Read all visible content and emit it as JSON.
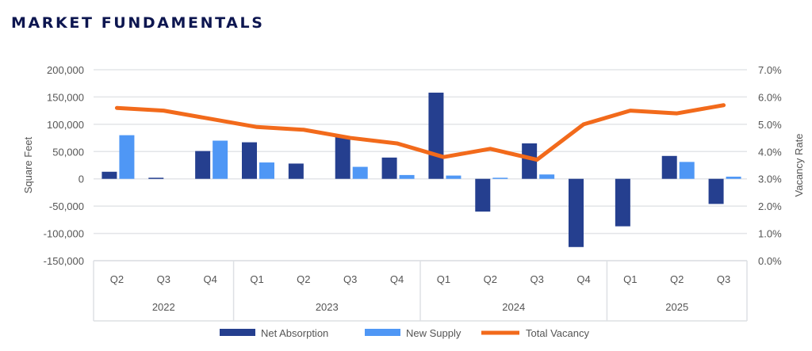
{
  "title": "MARKET FUNDAMENTALS",
  "chart_data": {
    "type": "bar",
    "title": "MARKET FUNDAMENTALS",
    "ylabel": "Square Feet",
    "y2label": "Vacancy Rate",
    "ylim": [
      -150000,
      200000
    ],
    "yticks": [
      200000,
      150000,
      100000,
      50000,
      0,
      -50000,
      -100000,
      -150000
    ],
    "ytick_labels": [
      "200,000",
      "150,000",
      "100,000",
      "50,000",
      "0",
      "-50,000",
      "-100,000",
      "-150,000"
    ],
    "y2lim": [
      0,
      7
    ],
    "y2tick_labels": [
      "7.0%",
      "6.0%",
      "5.0%",
      "4.0%",
      "3.0%",
      "2.0%",
      "1.0%",
      "0.0%"
    ],
    "grid": true,
    "legend_position": "bottom",
    "categories": [
      "Q2",
      "Q3",
      "Q4",
      "Q1",
      "Q2",
      "Q3",
      "Q4",
      "Q1",
      "Q2",
      "Q3",
      "Q4",
      "Q1",
      "Q2",
      "Q3"
    ],
    "year_groups": [
      {
        "label": "2022",
        "count": 3
      },
      {
        "label": "2023",
        "count": 4
      },
      {
        "label": "2024",
        "count": 4
      },
      {
        "label": "2025",
        "count": 3
      }
    ],
    "series": [
      {
        "name": "Net Absorption",
        "type": "bar",
        "axis": "left",
        "color": "#253f8f",
        "values": [
          13000,
          2000,
          51000,
          67000,
          28000,
          78000,
          39000,
          158000,
          -60000,
          65000,
          -125000,
          -87000,
          42000,
          -46000
        ]
      },
      {
        "name": "New Supply",
        "type": "bar",
        "axis": "left",
        "color": "#4f97f5",
        "values": [
          80000,
          0,
          70000,
          30000,
          0,
          22000,
          7000,
          6000,
          2000,
          8000,
          0,
          0,
          31000,
          4000
        ]
      },
      {
        "name": "Total Vacancy",
        "type": "line",
        "axis": "right",
        "color": "#f26a1b",
        "values": [
          5.6,
          5.5,
          5.2,
          4.9,
          4.8,
          4.5,
          4.3,
          3.8,
          4.1,
          3.7,
          5.0,
          5.5,
          5.4,
          5.7
        ]
      }
    ]
  }
}
